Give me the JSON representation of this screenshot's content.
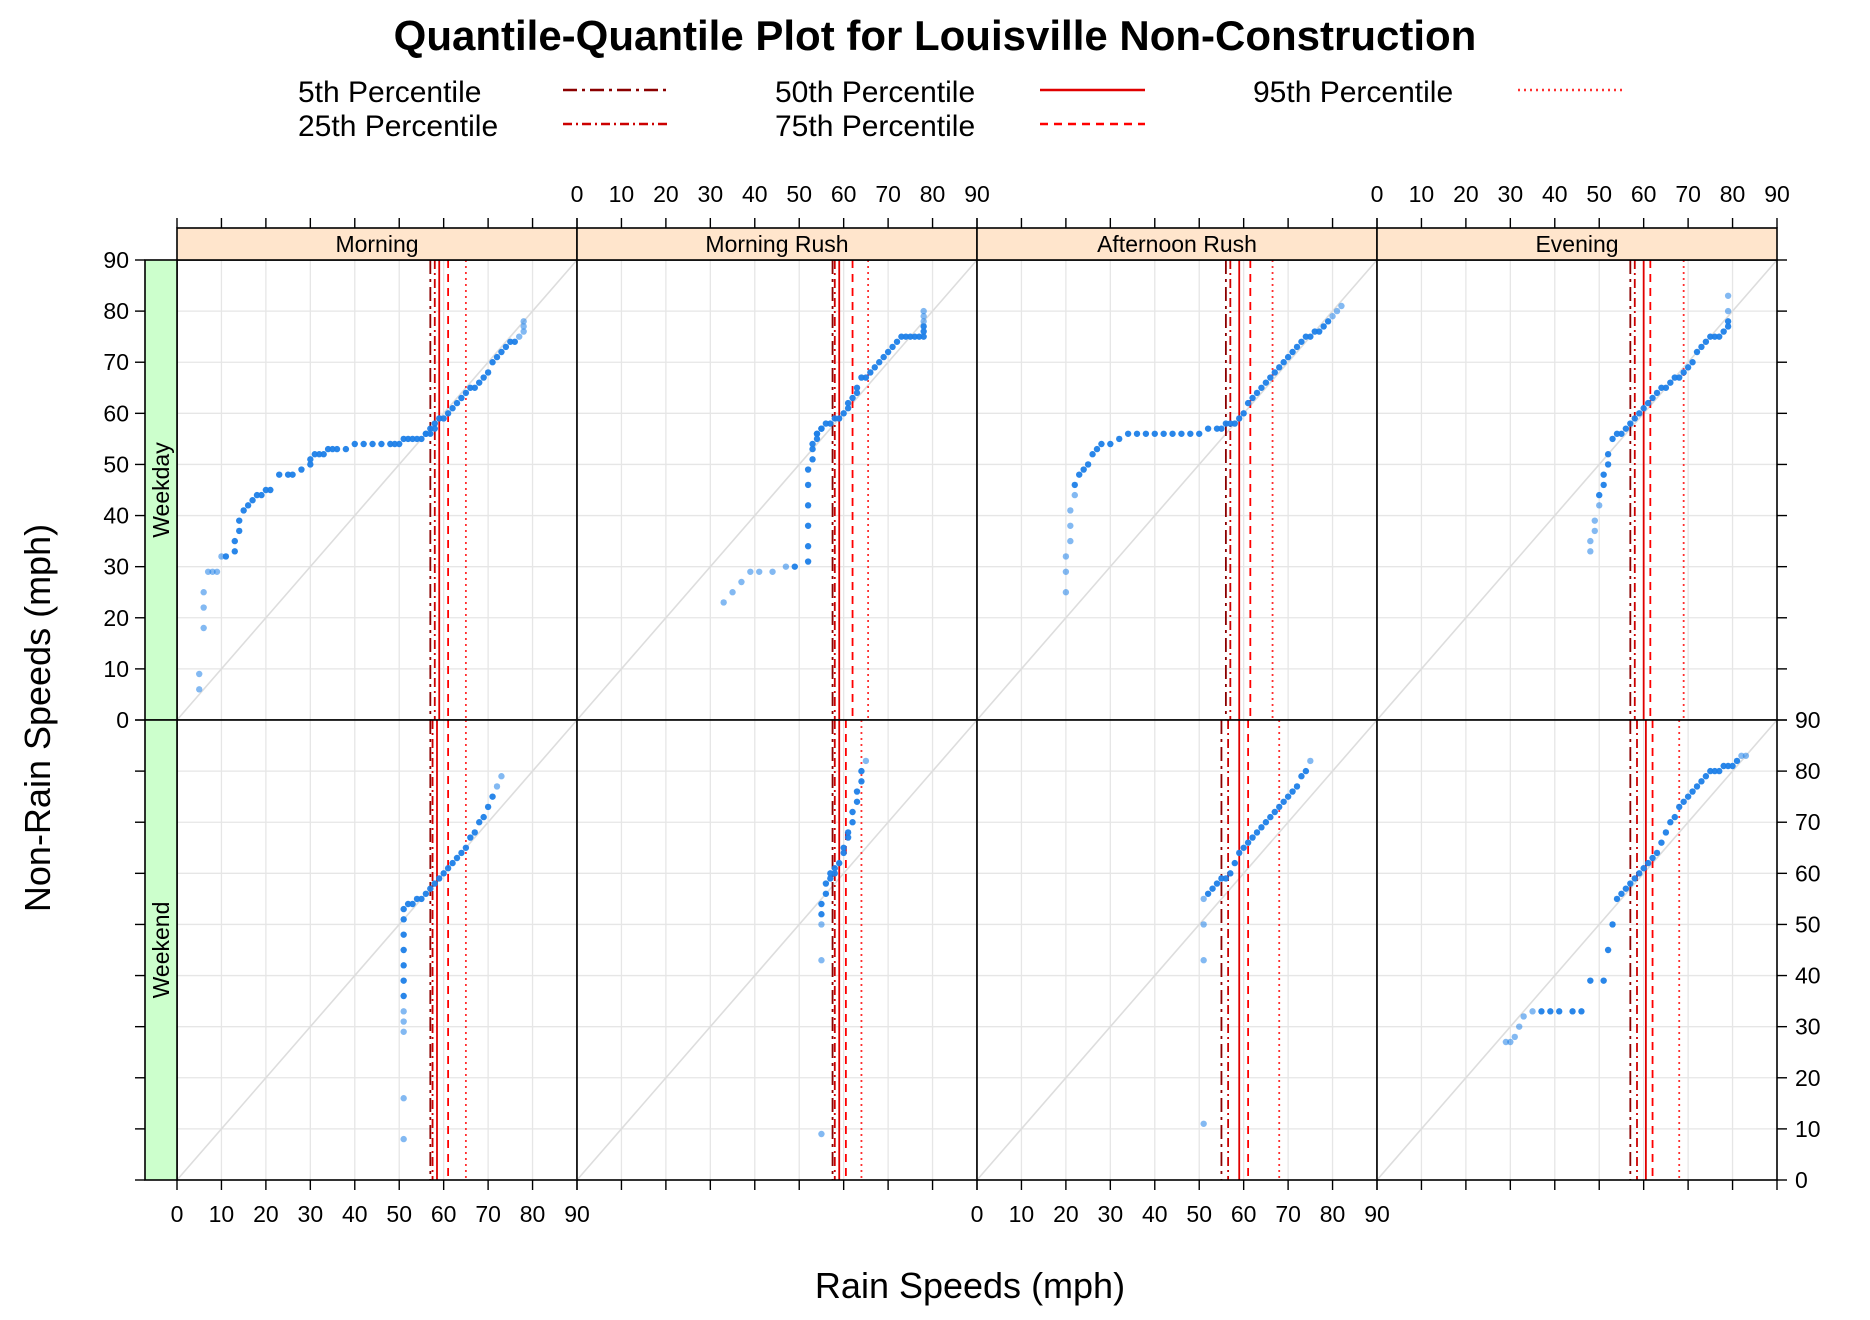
{
  "chart_data": {
    "type": "scatter",
    "title": "Quantile-Quantile Plot for Louisville Non-Construction",
    "xlabel": "Rain Speeds (mph)",
    "ylabel": "Non-Rain Speeds (mph)",
    "xlim": [
      0,
      90
    ],
    "ylim": [
      0,
      90
    ],
    "ticks": [
      "0",
      "10",
      "20",
      "30",
      "40",
      "50",
      "60",
      "70",
      "80",
      "90"
    ],
    "grid": true,
    "reference_line": "y = x",
    "legend_position": "top",
    "legend": [
      {
        "label": "5th Percentile",
        "style": "dashdot-long",
        "color": "#8B0000"
      },
      {
        "label": "25th Percentile",
        "style": "dashdot",
        "color": "#CC0000"
      },
      {
        "label": "50th Percentile",
        "style": "solid",
        "color": "#E00000"
      },
      {
        "label": "75th Percentile",
        "style": "dashed",
        "color": "#FF0000"
      },
      {
        "label": "95th Percentile",
        "style": "dotted",
        "color": "#FF3030"
      }
    ],
    "columns": [
      "Morning",
      "Morning Rush",
      "Afternoon Rush",
      "Evening"
    ],
    "rows": [
      "Weekday",
      "Weekend"
    ],
    "colors": {
      "strip_top": "#FFE5CC",
      "strip_side": "#CCFFCC",
      "point": "#1E7FE8",
      "reference": "#DDDDDD",
      "grid": "#E6E6E6"
    },
    "panels": [
      {
        "row": "Weekday",
        "column": "Morning",
        "percentiles": {
          "p5": 57,
          "p25": 58,
          "p50": 59,
          "p75": 61,
          "p95": 65
        },
        "x": [
          5,
          5,
          6,
          6,
          6,
          7,
          8,
          9,
          10,
          11,
          13,
          13,
          14,
          14,
          15,
          16,
          17,
          18,
          19,
          20,
          21,
          23,
          25,
          26,
          28,
          30,
          30,
          31,
          32,
          33,
          34,
          35,
          36,
          38,
          40,
          42,
          44,
          46,
          48,
          49,
          50,
          51,
          52,
          53,
          54,
          55,
          56,
          56,
          57,
          57,
          58,
          58,
          59,
          60,
          61,
          62,
          63,
          64,
          65,
          66,
          67,
          68,
          69,
          70,
          71,
          72,
          73,
          74,
          75,
          76,
          77,
          78,
          78,
          78
        ],
        "y": [
          6,
          9,
          18,
          22,
          25,
          29,
          29,
          29,
          32,
          32,
          33,
          35,
          37,
          39,
          41,
          42,
          43,
          44,
          44,
          45,
          45,
          48,
          48,
          48,
          49,
          50,
          51,
          52,
          52,
          52,
          53,
          53,
          53,
          53,
          54,
          54,
          54,
          54,
          54,
          54,
          54,
          55,
          55,
          55,
          55,
          55,
          56,
          56,
          56,
          57,
          57,
          58,
          59,
          59,
          60,
          61,
          62,
          63,
          64,
          65,
          65,
          66,
          67,
          68,
          70,
          71,
          72,
          73,
          74,
          74,
          75,
          76,
          77,
          78
        ]
      },
      {
        "row": "Weekday",
        "column": "Morning Rush",
        "percentiles": {
          "p5": 57.5,
          "p25": 58,
          "p50": 59,
          "p75": 62,
          "p95": 65.5
        },
        "x": [
          33,
          35,
          37,
          39,
          41,
          44,
          47,
          49,
          52,
          52,
          52,
          52,
          52,
          52,
          53,
          53,
          53,
          54,
          54,
          54,
          55,
          55,
          56,
          57,
          58,
          59,
          60,
          61,
          61,
          62,
          63,
          63,
          64,
          65,
          66,
          67,
          68,
          69,
          70,
          71,
          72,
          73,
          74,
          75,
          76,
          77,
          78,
          78,
          78,
          78,
          78,
          78
        ],
        "y": [
          23,
          25,
          27,
          29,
          29,
          29,
          30,
          30,
          31,
          34,
          38,
          42,
          46,
          49,
          51,
          53,
          54,
          55,
          56,
          56,
          57,
          57,
          58,
          58,
          59,
          59,
          60,
          61,
          62,
          63,
          64,
          65,
          67,
          67,
          68,
          69,
          70,
          71,
          72,
          73,
          74,
          75,
          75,
          75,
          75,
          75,
          75,
          76,
          77,
          78,
          79,
          80
        ]
      },
      {
        "row": "Weekday",
        "column": "Afternoon Rush",
        "percentiles": {
          "p5": 56,
          "p25": 57,
          "p50": 59,
          "p75": 61.5,
          "p95": 66.5
        },
        "x": [
          20,
          20,
          20,
          21,
          21,
          21,
          22,
          22,
          23,
          24,
          25,
          26,
          27,
          28,
          30,
          32,
          34,
          36,
          38,
          40,
          42,
          44,
          46,
          48,
          50,
          52,
          54,
          55,
          56,
          57,
          58,
          59,
          60,
          61,
          62,
          63,
          64,
          65,
          66,
          67,
          68,
          69,
          70,
          71,
          72,
          73,
          74,
          75,
          76,
          77,
          78,
          79,
          80,
          81,
          82
        ],
        "y": [
          25,
          29,
          32,
          35,
          38,
          41,
          44,
          46,
          48,
          49,
          50,
          52,
          53,
          54,
          54,
          55,
          56,
          56,
          56,
          56,
          56,
          56,
          56,
          56,
          56,
          57,
          57,
          57,
          58,
          58,
          58,
          59,
          60,
          62,
          63,
          64,
          65,
          66,
          67,
          68,
          69,
          70,
          71,
          72,
          73,
          74,
          75,
          75,
          76,
          76,
          77,
          78,
          79,
          80,
          81
        ]
      },
      {
        "row": "Weekday",
        "column": "Evening",
        "percentiles": {
          "p5": 57,
          "p25": 58,
          "p50": 60,
          "p75": 61.5,
          "p95": 69
        },
        "x": [
          48,
          48,
          49,
          49,
          50,
          50,
          51,
          51,
          52,
          52,
          53,
          54,
          55,
          56,
          57,
          58,
          59,
          60,
          61,
          62,
          63,
          64,
          65,
          66,
          67,
          68,
          69,
          70,
          71,
          72,
          73,
          74,
          75,
          76,
          77,
          78,
          79,
          79,
          79,
          79
        ],
        "y": [
          33,
          35,
          37,
          39,
          42,
          44,
          46,
          48,
          50,
          52,
          55,
          56,
          56,
          57,
          58,
          59,
          60,
          61,
          62,
          63,
          64,
          65,
          65,
          66,
          67,
          67,
          68,
          69,
          70,
          72,
          73,
          74,
          75,
          75,
          75,
          76,
          77,
          78,
          80,
          83
        ]
      },
      {
        "row": "Weekend",
        "column": "Morning",
        "percentiles": {
          "p5": 57,
          "p25": 57.5,
          "p50": 58.5,
          "p75": 61,
          "p95": 65
        },
        "x": [
          51,
          51,
          51,
          51,
          51,
          51,
          51,
          51,
          51,
          51,
          51,
          51,
          52,
          53,
          54,
          55,
          56,
          57,
          58,
          59,
          60,
          61,
          62,
          63,
          64,
          65,
          66,
          67,
          68,
          69,
          70,
          71,
          72,
          73
        ],
        "y": [
          8,
          16,
          29,
          31,
          33,
          36,
          39,
          42,
          45,
          48,
          51,
          53,
          54,
          54,
          55,
          55,
          56,
          57,
          58,
          59,
          60,
          61,
          62,
          63,
          64,
          65,
          67,
          68,
          70,
          71,
          73,
          75,
          77,
          79
        ]
      },
      {
        "row": "Weekend",
        "column": "Morning Rush",
        "percentiles": {
          "p5": 57.5,
          "p25": 58,
          "p50": 59,
          "p75": 60.5,
          "p95": 64
        },
        "x": [
          55,
          55,
          55,
          55,
          55,
          56,
          56,
          57,
          57,
          58,
          58,
          59,
          60,
          60,
          61,
          61,
          62,
          62,
          63,
          63,
          64,
          64,
          65
        ],
        "y": [
          9,
          43,
          50,
          52,
          54,
          56,
          58,
          59,
          60,
          60,
          61,
          62,
          64,
          65,
          67,
          68,
          70,
          72,
          74,
          76,
          78,
          80,
          82
        ]
      },
      {
        "row": "Weekend",
        "column": "Afternoon Rush",
        "percentiles": {
          "p5": 55,
          "p25": 56.5,
          "p50": 59,
          "p75": 61,
          "p95": 68
        },
        "x": [
          51,
          51,
          51,
          51,
          52,
          53,
          54,
          55,
          56,
          57,
          58,
          59,
          60,
          61,
          62,
          63,
          64,
          65,
          66,
          67,
          68,
          69,
          70,
          71,
          72,
          73,
          74,
          75
        ],
        "y": [
          11,
          43,
          50,
          55,
          56,
          57,
          58,
          59,
          59,
          60,
          62,
          64,
          65,
          66,
          67,
          68,
          69,
          70,
          71,
          72,
          73,
          74,
          75,
          76,
          77,
          79,
          80,
          82
        ]
      },
      {
        "row": "Weekend",
        "column": "Evening",
        "percentiles": {
          "p5": 57,
          "p25": 58.5,
          "p50": 60.5,
          "p75": 62,
          "p95": 68
        },
        "x": [
          29,
          30,
          31,
          32,
          33,
          35,
          37,
          39,
          41,
          44,
          46,
          48,
          51,
          52,
          53,
          54,
          55,
          56,
          57,
          58,
          59,
          60,
          61,
          62,
          63,
          64,
          65,
          66,
          67,
          68,
          69,
          70,
          71,
          72,
          73,
          74,
          75,
          76,
          77,
          78,
          79,
          80,
          81,
          82,
          83
        ],
        "y": [
          27,
          27,
          28,
          30,
          32,
          33,
          33,
          33,
          33,
          33,
          33,
          39,
          39,
          45,
          50,
          55,
          56,
          57,
          58,
          59,
          60,
          61,
          62,
          63,
          64,
          66,
          68,
          70,
          71,
          73,
          74,
          75,
          76,
          77,
          78,
          79,
          80,
          80,
          80,
          81,
          81,
          81,
          82,
          83,
          83
        ]
      }
    ]
  }
}
